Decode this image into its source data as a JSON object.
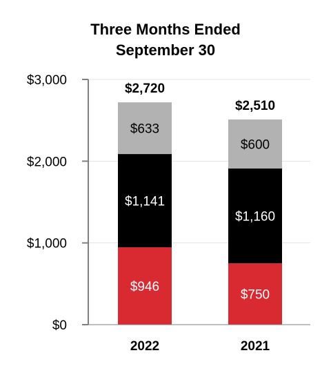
{
  "chart_data": {
    "type": "bar",
    "stacked": true,
    "title_lines": [
      "Three Months Ended",
      "September 30"
    ],
    "categories": [
      "2022",
      "2021"
    ],
    "series": [
      {
        "values": [
          946,
          750
        ],
        "labels": [
          "$946",
          "$750"
        ],
        "color": "#d92a32",
        "label_color": "#ffffff"
      },
      {
        "values": [
          1141,
          1160
        ],
        "labels": [
          "$1,141",
          "$1,160"
        ],
        "color": "#000000",
        "label_color": "#ffffff"
      },
      {
        "values": [
          633,
          600
        ],
        "labels": [
          "$633",
          "$600"
        ],
        "color": "#b2b2b2",
        "label_color": "#000000"
      }
    ],
    "totals": [
      2720,
      2510
    ],
    "total_labels": [
      "$2,720",
      "$2,510"
    ],
    "ylim": [
      0,
      3000
    ],
    "yticks": [
      0,
      1000,
      2000,
      3000
    ],
    "ytick_labels": [
      "$0",
      "$1,000",
      "$2,000",
      "$3,000"
    ],
    "grid": true
  }
}
